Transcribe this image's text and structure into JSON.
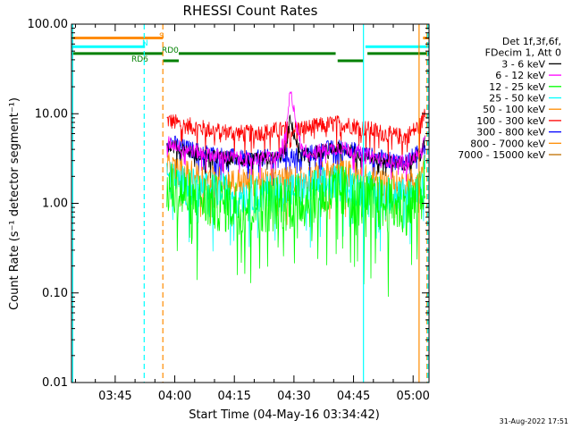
{
  "chart_data": {
    "type": "line",
    "title": "RHESSI Count Rates",
    "xlabel": "Start Time (04-May-16 03:34:42)",
    "ylabel": "Count Rate (s⁻¹ detector segment⁻¹)",
    "yscale": "log",
    "ylim": [
      0.01,
      100
    ],
    "xlim_minutes_after_0330": [
      4,
      94
    ],
    "x_ticks": [
      {
        "label": "03:45",
        "minutes": 15
      },
      {
        "label": "04:00",
        "minutes": 30
      },
      {
        "label": "04:15",
        "minutes": 45
      },
      {
        "label": "04:30",
        "minutes": 60
      },
      {
        "label": "04:45",
        "minutes": 75
      },
      {
        "label": "05:00",
        "minutes": 90
      }
    ],
    "y_ticks": [
      {
        "label": "100.00",
        "value": 100
      },
      {
        "label": "10.00",
        "value": 10
      },
      {
        "label": "1.00",
        "value": 1
      },
      {
        "label": "0.10",
        "value": 0.1
      },
      {
        "label": "0.01",
        "value": 0.01
      }
    ],
    "legend": {
      "position": "right",
      "header": [
        "Det 1f,3f,6f,",
        "FDecim 1, Att 0"
      ],
      "entries": [
        {
          "label": "3 - 6 keV",
          "color": "#000000"
        },
        {
          "label": "6 - 12 keV",
          "color": "#ff00ff"
        },
        {
          "label": "12 - 25 keV",
          "color": "#00ff00"
        },
        {
          "label": "25 - 50 keV",
          "color": "#00ffff"
        },
        {
          "label": "50 - 100 keV",
          "color": "#ff8c00"
        },
        {
          "label": "100 - 300 keV",
          "color": "#ff0000"
        },
        {
          "label": "300 - 800 keV",
          "color": "#0000ff"
        },
        {
          "label": "800 - 7000 keV",
          "color": "#ff8c00"
        },
        {
          "label": "7000 - 15000 keV",
          "color": "#c07000"
        }
      ]
    },
    "flag_bars": [
      {
        "label": "S",
        "color": "#ff8c00",
        "level": 70,
        "segments": [
          [
            4,
            27
          ],
          [
            92.5,
            94
          ]
        ]
      },
      {
        "label": "N",
        "color": "#00ffff",
        "level": 56,
        "segments": [
          [
            4,
            22.5
          ],
          [
            78,
            94
          ]
        ]
      },
      {
        "label": "RD0",
        "color": "#008000",
        "level": 47,
        "segments": [
          [
            4,
            27
          ],
          [
            31,
            70.5
          ],
          [
            78.5,
            94
          ]
        ]
      },
      {
        "label": "RD6",
        "color": "#008000",
        "level": 39,
        "segments": [
          [
            27,
            31
          ],
          [
            71,
            77.5
          ]
        ]
      }
    ],
    "vertical_markers": [
      {
        "minutes": 4.3,
        "color": "#00ffff",
        "style": "solid"
      },
      {
        "minutes": 22.3,
        "color": "#00ffff",
        "style": "dashed"
      },
      {
        "minutes": 27,
        "color": "#ff8c00",
        "style": "dashed"
      },
      {
        "minutes": 77.5,
        "color": "#00ffff",
        "style": "solid"
      },
      {
        "minutes": 91.5,
        "color": "#ff8c00",
        "style": "solid"
      },
      {
        "minutes": 93.5,
        "color": "#ff8c00",
        "style": "dashed"
      },
      {
        "minutes": 93.7,
        "color": "#00ffff",
        "style": "dashed"
      }
    ],
    "series": [
      {
        "name": "100 - 300 keV",
        "color": "#ff0000",
        "times": [
          28,
          32,
          36,
          40,
          44,
          48,
          52,
          56,
          60,
          64,
          68,
          72,
          76,
          80,
          84,
          88,
          92,
          93
        ],
        "values": [
          8.5,
          7.5,
          7.0,
          6.5,
          6.2,
          6.0,
          6.2,
          6.5,
          6.8,
          7.0,
          7.5,
          7.8,
          7.2,
          6.5,
          5.8,
          5.5,
          7.5,
          11
        ]
      },
      {
        "name": "300 - 800 keV",
        "color": "#0000ff",
        "times": [
          28,
          32,
          36,
          40,
          44,
          48,
          52,
          56,
          60,
          64,
          68,
          72,
          76,
          80,
          84,
          88,
          92,
          93
        ],
        "values": [
          5.0,
          4.2,
          3.8,
          3.5,
          3.3,
          3.1,
          3.2,
          3.3,
          3.4,
          3.6,
          4.0,
          4.2,
          3.8,
          3.3,
          3.0,
          2.9,
          3.8,
          5.5
        ]
      },
      {
        "name": "3 - 6 keV",
        "color": "#000000",
        "times": [
          28,
          32,
          36,
          40,
          44,
          48,
          52,
          56,
          58,
          59,
          60,
          61,
          62,
          64,
          68,
          72,
          76,
          80,
          84,
          88,
          92,
          93
        ],
        "values": [
          4.5,
          4.0,
          3.5,
          3.3,
          3.2,
          3.0,
          3.1,
          3.2,
          4.0,
          8.5,
          6.0,
          4.2,
          3.5,
          3.6,
          3.9,
          4.1,
          3.6,
          3.2,
          2.9,
          2.8,
          3.5,
          5.0
        ]
      },
      {
        "name": "6 - 12 keV",
        "color": "#ff00ff",
        "times": [
          28,
          32,
          36,
          40,
          44,
          48,
          52,
          56,
          58,
          59,
          60,
          61,
          62,
          64,
          68,
          72,
          76,
          80,
          84,
          88,
          92,
          93
        ],
        "values": [
          4.8,
          4.2,
          3.7,
          3.4,
          3.3,
          3.1,
          3.2,
          3.3,
          5.5,
          17,
          12,
          6.0,
          4.0,
          3.7,
          4.0,
          4.2,
          3.7,
          3.3,
          3.0,
          2.9,
          3.6,
          5.2
        ]
      },
      {
        "name": "800 - 7000 keV",
        "color": "#ff8c00",
        "times": [
          28,
          32,
          36,
          40,
          44,
          48,
          52,
          56,
          60,
          64,
          68,
          72,
          76,
          80,
          84,
          88,
          92,
          93
        ],
        "values": [
          2.6,
          2.2,
          2.0,
          1.85,
          1.75,
          1.7,
          1.72,
          1.8,
          1.85,
          1.95,
          2.1,
          2.25,
          2.0,
          1.8,
          1.65,
          1.6,
          2.1,
          3.2
        ]
      },
      {
        "name": "25 - 50 keV",
        "color": "#00ffff",
        "times": [
          28,
          32,
          36,
          40,
          44,
          48,
          52,
          56,
          60,
          64,
          68,
          72,
          76,
          80,
          84,
          88,
          92,
          93
        ],
        "values": [
          1.9,
          1.6,
          1.45,
          1.35,
          1.3,
          1.25,
          1.28,
          1.32,
          1.38,
          1.45,
          1.6,
          1.7,
          1.5,
          1.35,
          1.25,
          1.2,
          1.5,
          2.3
        ]
      },
      {
        "name": "12 - 25 keV",
        "color": "#00ff00",
        "times": [
          28,
          32,
          36,
          40,
          44,
          48,
          52,
          56,
          60,
          64,
          68,
          72,
          76,
          80,
          84,
          88,
          92,
          93
        ],
        "values": [
          1.5,
          1.25,
          1.1,
          1.0,
          0.95,
          0.92,
          0.95,
          1.0,
          1.05,
          1.1,
          1.25,
          1.35,
          1.15,
          1.0,
          0.93,
          0.9,
          1.15,
          1.8
        ]
      }
    ]
  },
  "footer": {
    "date_stamp": "31-Aug-2022 17:51"
  }
}
